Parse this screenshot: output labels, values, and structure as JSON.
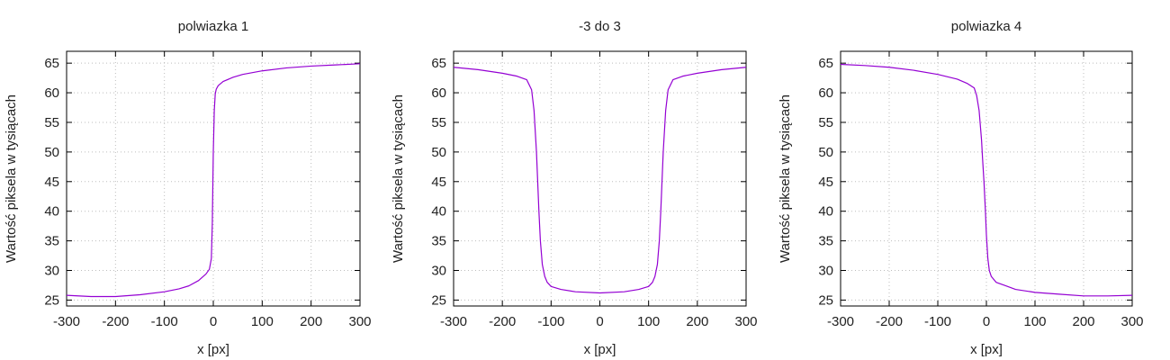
{
  "chart_data": [
    {
      "type": "line",
      "title": "polwiazka 1",
      "xlabel": "x [px]",
      "ylabel": "Wartość piksela w tysiącach",
      "xlim": [
        -300,
        300
      ],
      "ylim": [
        24,
        67
      ],
      "xticks": [
        "-300",
        "-200",
        "-100",
        "0",
        "100",
        "200",
        "300"
      ],
      "yticks": [
        "25",
        "30",
        "35",
        "40",
        "45",
        "50",
        "55",
        "60",
        "65"
      ],
      "grid": true,
      "color": "#9400d3",
      "series": [
        {
          "x": [
            -300,
            -250,
            -200,
            -150,
            -100,
            -70,
            -50,
            -30,
            -15,
            -8,
            -4,
            -2,
            0,
            2,
            4,
            6,
            10,
            20,
            40,
            60,
            100,
            150,
            200,
            250,
            300
          ],
          "y": [
            25.8,
            25.6,
            25.6,
            25.9,
            26.4,
            26.9,
            27.4,
            28.3,
            29.4,
            30.2,
            32,
            38,
            50,
            57,
            59.8,
            60.6,
            61.2,
            61.9,
            62.6,
            63.1,
            63.7,
            64.2,
            64.5,
            64.7,
            64.9
          ]
        }
      ]
    },
    {
      "type": "line",
      "title": "-3 do 3",
      "xlabel": "x [px]",
      "ylabel": "Wartość piksela w tysiącach",
      "xlim": [
        -300,
        300
      ],
      "ylim": [
        24,
        67
      ],
      "xticks": [
        "-300",
        "-200",
        "-100",
        "0",
        "100",
        "200",
        "300"
      ],
      "yticks": [
        "25",
        "30",
        "35",
        "40",
        "45",
        "50",
        "55",
        "60",
        "65"
      ],
      "grid": true,
      "color": "#9400d3",
      "series": [
        {
          "x": [
            -300,
            -250,
            -200,
            -170,
            -150,
            -140,
            -135,
            -130,
            -127,
            -125,
            -122,
            -118,
            -113,
            -108,
            -100,
            -80,
            -50,
            0,
            50,
            80,
            100,
            108,
            113,
            118,
            122,
            125,
            127,
            130,
            135,
            140,
            150,
            170,
            200,
            250,
            300
          ],
          "y": [
            64.3,
            63.9,
            63.3,
            62.8,
            62.2,
            60.5,
            57,
            50,
            44,
            40,
            35,
            31,
            29,
            28,
            27.3,
            26.8,
            26.4,
            26.2,
            26.4,
            26.8,
            27.3,
            28,
            29,
            31,
            35,
            40,
            44,
            50,
            57,
            60.5,
            62.2,
            62.8,
            63.3,
            63.9,
            64.3
          ]
        }
      ]
    },
    {
      "type": "line",
      "title": "polwiazka 4",
      "xlabel": "x [px]",
      "ylabel": "Wartość piksela w tysiącach",
      "xlim": [
        -300,
        300
      ],
      "ylim": [
        24,
        67
      ],
      "xticks": [
        "-300",
        "-200",
        "-100",
        "0",
        "100",
        "200",
        "300"
      ],
      "yticks": [
        "25",
        "30",
        "35",
        "40",
        "45",
        "50",
        "55",
        "60",
        "65"
      ],
      "grid": true,
      "color": "#9400d3",
      "series": [
        {
          "x": [
            -300,
            -250,
            -200,
            -150,
            -100,
            -60,
            -40,
            -25,
            -20,
            -15,
            -12,
            -10,
            -8,
            -5,
            -2,
            0,
            3,
            6,
            10,
            20,
            40,
            60,
            100,
            150,
            200,
            250,
            300
          ],
          "y": [
            64.8,
            64.6,
            64.3,
            63.8,
            63.1,
            62.3,
            61.6,
            60.8,
            59.5,
            57,
            54,
            52,
            49,
            45,
            40,
            36,
            32,
            30,
            29,
            28,
            27.4,
            26.8,
            26.3,
            26,
            25.7,
            25.7,
            25.8
          ]
        }
      ]
    }
  ]
}
